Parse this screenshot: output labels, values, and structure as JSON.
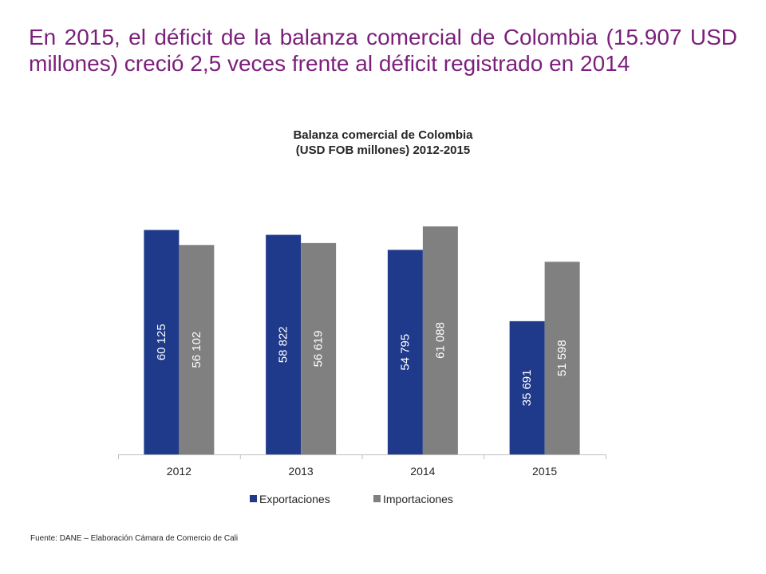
{
  "headline": "En 2015, el déficit de la balanza comercial de Colombia (15.907 USD millones) creció 2,5 veces frente al déficit registrado en 2014",
  "source": "Fuente: DANE – Elaboración Cámara de Comercio de Cali",
  "colors": {
    "headline": "#7b1f7b",
    "exportaciones": "#1f3a8a",
    "importaciones": "#808080"
  },
  "chart_data": {
    "type": "bar",
    "title_line1": "Balanza comercial de Colombia",
    "title_line2": "(USD FOB millones) 2012-2015",
    "categories": [
      "2012",
      "2013",
      "2014",
      "2015"
    ],
    "series": [
      {
        "name": "Exportaciones",
        "values": [
          60125,
          58822,
          54795,
          35691
        ],
        "labels": [
          "60 125",
          "58 822",
          "54 795",
          "35 691"
        ],
        "color": "#1f3a8a"
      },
      {
        "name": "Importaciones",
        "values": [
          56102,
          56619,
          61088,
          51598
        ],
        "labels": [
          "56 102",
          "56 619",
          "61 088",
          "51 598"
        ],
        "color": "#808080"
      }
    ],
    "ylim": [
      0,
      63000
    ],
    "legend": "bottom",
    "grid": false
  }
}
